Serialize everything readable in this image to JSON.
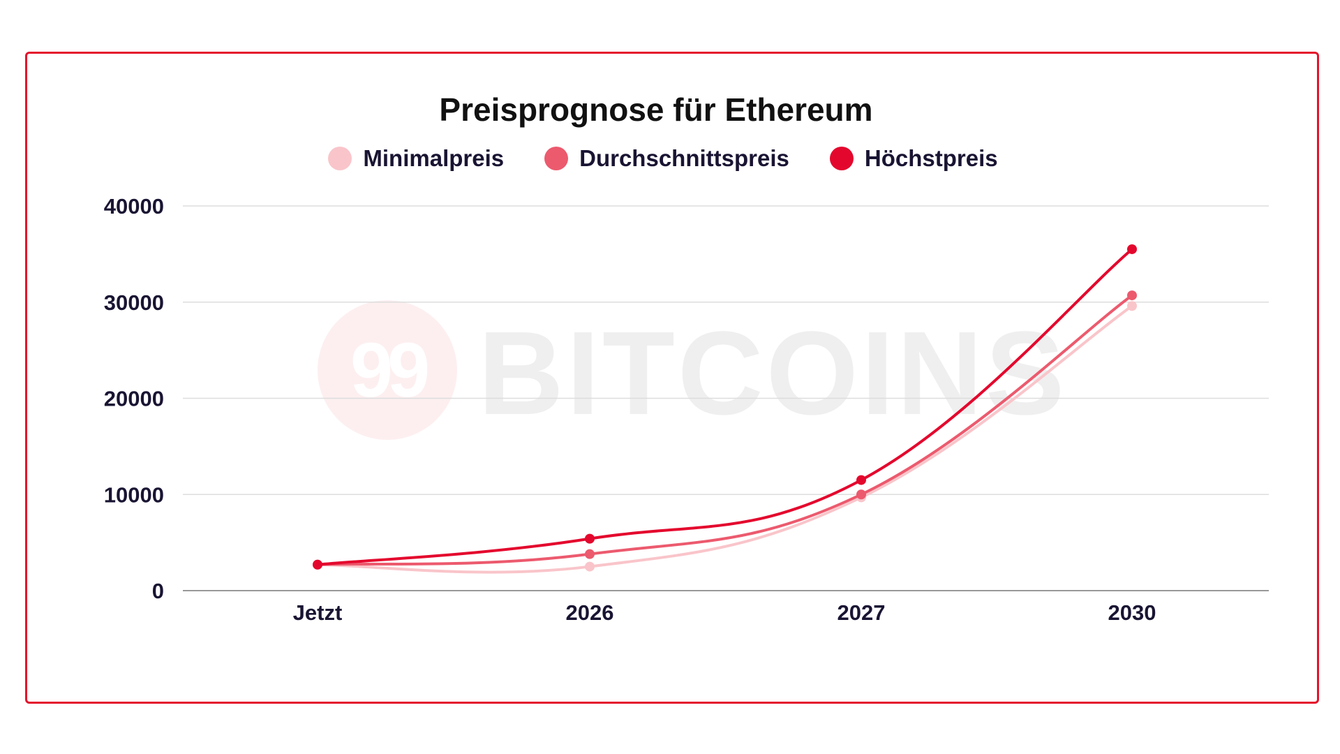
{
  "chart_data": {
    "type": "line",
    "title": "Preisprognose für Ethereum",
    "categories": [
      "Jetzt",
      "2026",
      "2027",
      "2030"
    ],
    "ylim": [
      0,
      40000
    ],
    "yticks": [
      "0",
      "10000",
      "20000",
      "30000",
      "40000"
    ],
    "grid": true,
    "legend_position": "top-center",
    "series": [
      {
        "name": "Minimalpreis",
        "color": "#f9c5ca",
        "values": [
          2700,
          2500,
          9700,
          29600
        ]
      },
      {
        "name": "Durchschnittspreis",
        "color": "#ec5a6e",
        "values": [
          2700,
          3800,
          10000,
          30700
        ]
      },
      {
        "name": "Höchstpreis",
        "color": "#e4072d",
        "values": [
          2700,
          5400,
          11500,
          35500
        ]
      }
    ]
  },
  "watermark": {
    "text": "BITCOINS",
    "badge": "99"
  },
  "colors": {
    "frame": "#e4132c",
    "grid": "#dddddd",
    "axis": "#999999"
  }
}
